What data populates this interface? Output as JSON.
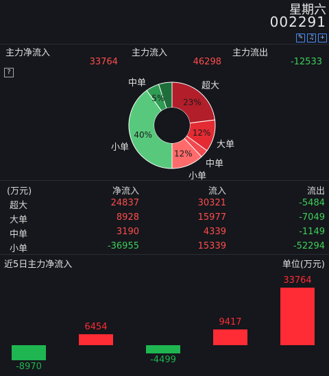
{
  "header": {
    "day": "星期六",
    "code": "002291"
  },
  "tool_icons": [
    "edit-icon",
    "bell-icon",
    "add-icon"
  ],
  "summary": {
    "net_label": "主力净流入",
    "net_value": "33764",
    "in_label": "主力流入",
    "in_value": "46298",
    "out_label": "主力流出",
    "out_value": "-12533"
  },
  "help_glyph": "?",
  "donut": {
    "slices": [
      {
        "name": "超大",
        "percent": 23,
        "color": "#b21e2a",
        "label": "23%",
        "outer_label": "超大"
      },
      {
        "name": "大单",
        "percent": 12,
        "color": "#e42b33",
        "label": "12%",
        "outer_label": "大单"
      },
      {
        "name": "中单",
        "percent": 3,
        "color": "#f0494f",
        "label": "",
        "outer_label": "中单"
      },
      {
        "name": "小单",
        "percent": 12,
        "color": "#ff6b6b",
        "label": "12%",
        "outer_label": "小单"
      },
      {
        "name": "小单",
        "percent": 40,
        "color": "#58c97c",
        "label": "40%",
        "outer_label": "小单"
      },
      {
        "name": "中单",
        "percent": 5,
        "color": "#2f9c54",
        "label": "5%",
        "outer_label": "中单"
      },
      {
        "name": "超大",
        "percent": 5,
        "color": "#1e6e3a",
        "label": "",
        "outer_label": ""
      }
    ]
  },
  "table": {
    "headers": [
      "(万元)",
      "净流入",
      "流入",
      "流出"
    ],
    "rows": [
      {
        "name": "超大",
        "net": "24837",
        "in": "30321",
        "out": "-5484"
      },
      {
        "name": "大单",
        "net": "8928",
        "in": "15977",
        "out": "-7049"
      },
      {
        "name": "中单",
        "net": "3190",
        "in": "4339",
        "out": "-1149"
      },
      {
        "name": "小单",
        "net": "-36955",
        "in": "15339",
        "out": "-52294"
      }
    ]
  },
  "bars_section": {
    "title": "近5日主力净流入",
    "unit": "单位(万元)"
  },
  "chart_data": {
    "type": "bar",
    "title": "近5日主力净流入",
    "ylabel": "单位(万元)",
    "values": [
      -8970,
      6454,
      -4499,
      9417,
      33764
    ],
    "labels": [
      "-8970",
      "6454",
      "-4499",
      "9417",
      "33764"
    ],
    "colors": {
      "positive": "#ff2b35",
      "negative": "#1fb651"
    }
  }
}
